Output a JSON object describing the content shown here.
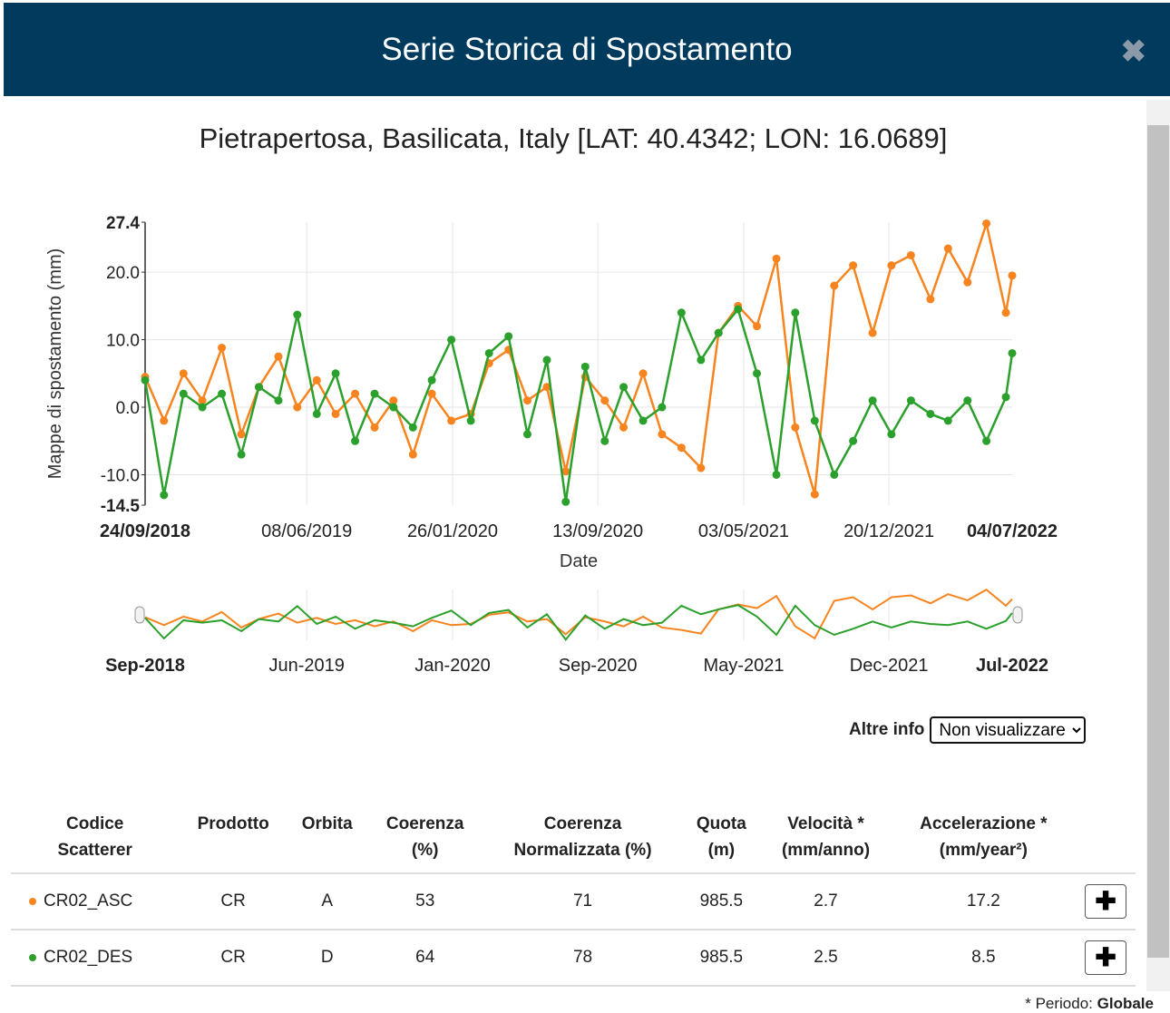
{
  "header": {
    "title": "Serie Storica di Spostamento"
  },
  "chart_data": {
    "type": "line",
    "title": "Pietrapertosa, Basilicata, Italy [LAT: 40.4342; LON: 16.0689]",
    "ylabel": "Mappe di spostamento (mm)",
    "xlabel": "Date",
    "x": [
      "2018-09-24",
      "2018-10-24",
      "2018-11-24",
      "2018-12-24",
      "2019-01-24",
      "2019-02-24",
      "2019-03-24",
      "2019-04-24",
      "2019-05-24",
      "2019-06-24",
      "2019-07-24",
      "2019-08-24",
      "2019-09-24",
      "2019-10-24",
      "2019-11-24",
      "2019-12-24",
      "2020-01-24",
      "2020-02-24",
      "2020-03-24",
      "2020-04-24",
      "2020-05-24",
      "2020-06-24",
      "2020-07-24",
      "2020-08-24",
      "2020-09-24",
      "2020-10-24",
      "2020-11-24",
      "2020-12-24",
      "2021-01-24",
      "2021-02-24",
      "2021-03-24",
      "2021-04-24",
      "2021-05-24",
      "2021-06-24",
      "2021-07-24",
      "2021-08-24",
      "2021-09-24",
      "2021-10-24",
      "2021-11-24",
      "2021-12-24",
      "2022-01-24",
      "2022-02-24",
      "2022-03-24",
      "2022-04-24",
      "2022-05-24",
      "2022-06-24",
      "2022-07-04"
    ],
    "series": [
      {
        "name": "CR02_ASC",
        "color": "#f7841e",
        "values": [
          4.5,
          -2,
          5,
          1,
          8.8,
          -4,
          3,
          7.5,
          0,
          4,
          -1,
          2,
          -3,
          1,
          -7,
          2,
          -2,
          -1,
          6.5,
          8.5,
          1,
          3,
          -9.5,
          4.5,
          1,
          -3,
          5,
          -4,
          -6,
          -9,
          11,
          15,
          12,
          22,
          -3,
          -12.9,
          18,
          21,
          11,
          21,
          22.5,
          16,
          23.5,
          18.5,
          27.2,
          14,
          19.5
        ]
      },
      {
        "name": "CR02_DES",
        "color": "#2ca02c",
        "values": [
          4,
          -13,
          2,
          0,
          2,
          -7,
          3,
          1,
          13.7,
          -1,
          5,
          -5,
          2,
          0,
          -3,
          4,
          10,
          -2,
          8,
          10.5,
          -4,
          7,
          -14,
          6,
          -5,
          3,
          -2,
          0,
          14,
          7,
          11,
          14.5,
          5,
          -10,
          14,
          -2,
          -10,
          -5,
          1,
          -4,
          1,
          -1,
          -2,
          1,
          -5,
          1.5,
          8
        ]
      }
    ],
    "xlim": [
      "2018-09-24",
      "2022-07-04"
    ],
    "xticks": [
      {
        "value": "2018-09-24",
        "label": "24/09/2018"
      },
      {
        "value": "2019-06-08",
        "label": "08/06/2019"
      },
      {
        "value": "2020-01-26",
        "label": "26/01/2020"
      },
      {
        "value": "2020-09-13",
        "label": "13/09/2020"
      },
      {
        "value": "2021-05-03",
        "label": "03/05/2021"
      },
      {
        "value": "2021-12-20",
        "label": "20/12/2021"
      },
      {
        "value": "2022-07-04",
        "label": "04/07/2022"
      }
    ],
    "ylim": [
      -14.5,
      27.4
    ],
    "yticks": [
      -14.5,
      {
        "value": -10,
        "label": "-10.0"
      },
      {
        "value": 0,
        "label": "0.0"
      },
      {
        "value": 10,
        "label": "10.0"
      },
      {
        "value": 20,
        "label": "20.0"
      },
      27.4
    ],
    "grid": true,
    "navigator": {
      "xticks": [
        {
          "value": "2018-09-24",
          "label": "Sep-2018"
        },
        {
          "value": "2019-06-08",
          "label": "Jun-2019"
        },
        {
          "value": "2020-01-26",
          "label": "Jan-2020"
        },
        {
          "value": "2020-09-13",
          "label": "Sep-2020"
        },
        {
          "value": "2021-05-03",
          "label": "May-2021"
        },
        {
          "value": "2021-12-20",
          "label": "Dec-2021"
        },
        {
          "value": "2022-07-04",
          "label": "Jul-2022"
        }
      ]
    }
  },
  "controls": {
    "label": "Altre info",
    "option": "Non visualizzare"
  },
  "table": {
    "headers": [
      [
        "Codice",
        "Scatterer"
      ],
      [
        "Prodotto"
      ],
      [
        "Orbita"
      ],
      [
        "Coerenza",
        "(%)"
      ],
      [
        "Coerenza",
        "Normalizzata (%)"
      ],
      [
        "Quota",
        "(m)"
      ],
      [
        "Velocità *",
        "(mm/anno)"
      ],
      [
        "Accelerazione *",
        "(mm/year²)"
      ]
    ],
    "rows": [
      {
        "color": "#f7841e",
        "cells": [
          "CR02_ASC",
          "CR",
          "A",
          53,
          71,
          985.5,
          2.7,
          17.2
        ]
      },
      {
        "color": "#2ca02c",
        "cells": [
          "CR02_DES",
          "CR",
          "D",
          64,
          78,
          985.5,
          2.5,
          8.5
        ]
      }
    ]
  },
  "footer": {
    "note": "* Periodo:",
    "period": "Globale"
  }
}
